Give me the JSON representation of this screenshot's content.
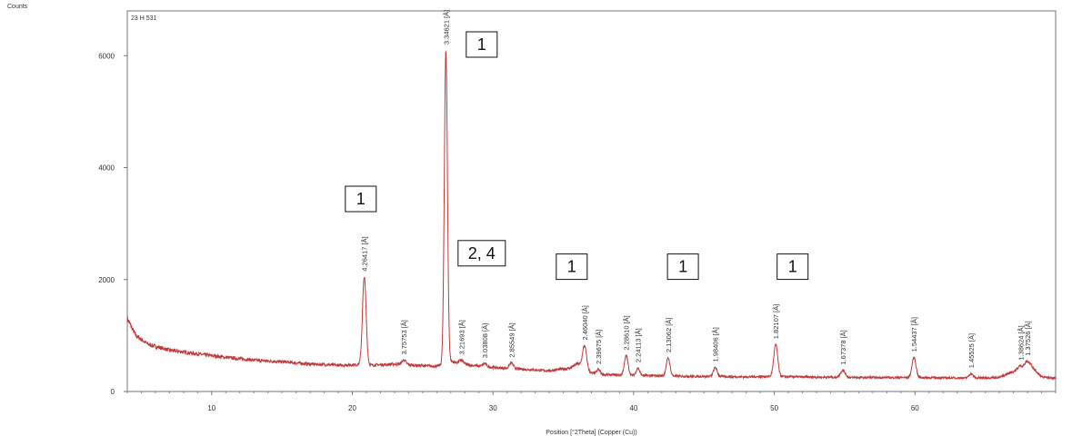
{
  "chart_data": {
    "type": "line",
    "ylabel": "Counts",
    "xlabel": "Position [°2Theta] (Copper (Cu))",
    "sample_name": "23 H 531",
    "xlim": [
      4,
      70
    ],
    "ylim": [
      0,
      6800
    ],
    "x_ticks": [
      10,
      20,
      30,
      40,
      50,
      60
    ],
    "y_ticks": [
      0,
      2000,
      4000,
      6000
    ],
    "grid": false,
    "line_color": "#c0393b",
    "baseline": [
      [
        4,
        1300
      ],
      [
        4.6,
        1000
      ],
      [
        5.5,
        840
      ],
      [
        7,
        740
      ],
      [
        9,
        670
      ],
      [
        11,
        610
      ],
      [
        13,
        560
      ],
      [
        15,
        530
      ],
      [
        17,
        490
      ],
      [
        19,
        470
      ],
      [
        20.4,
        480
      ],
      [
        21.3,
        470
      ],
      [
        23,
        490
      ],
      [
        25,
        460
      ],
      [
        26,
        450
      ],
      [
        27,
        540
      ],
      [
        28,
        480
      ],
      [
        30,
        430
      ],
      [
        32,
        400
      ],
      [
        34,
        370
      ],
      [
        35.5,
        420
      ],
      [
        36,
        500
      ],
      [
        37,
        330
      ],
      [
        38,
        300
      ],
      [
        40,
        290
      ],
      [
        42,
        280
      ],
      [
        44,
        270
      ],
      [
        46,
        270
      ],
      [
        48,
        260
      ],
      [
        50,
        270
      ],
      [
        52,
        260
      ],
      [
        54,
        255
      ],
      [
        56,
        250
      ],
      [
        58,
        250
      ],
      [
        60,
        250
      ],
      [
        62,
        245
      ],
      [
        64,
        240
      ],
      [
        66,
        250
      ],
      [
        67,
        360
      ],
      [
        68.2,
        480
      ],
      [
        69,
        260
      ],
      [
        70,
        230
      ]
    ],
    "peaks": [
      {
        "x": 20.85,
        "y": 2050,
        "w": 0.13,
        "label": "4.26417 [Å]"
      },
      {
        "x": 23.66,
        "y": 560,
        "w": 0.15,
        "label": "3.75753 [Å]"
      },
      {
        "x": 26.65,
        "y": 6100,
        "w": 0.11,
        "label": "3.34621 [Å]"
      },
      {
        "x": 27.74,
        "y": 560,
        "w": 0.15,
        "label": "3.21693 [Å]"
      },
      {
        "x": 29.4,
        "y": 500,
        "w": 0.13,
        "label": "3.03808 [Å]"
      },
      {
        "x": 31.3,
        "y": 510,
        "w": 0.14,
        "label": "2.85549 [Å]"
      },
      {
        "x": 36.5,
        "y": 820,
        "w": 0.14,
        "label": "2.46040 [Å]"
      },
      {
        "x": 37.5,
        "y": 390,
        "w": 0.12,
        "label": "2.39675 [Å]"
      },
      {
        "x": 39.47,
        "y": 640,
        "w": 0.13,
        "label": "2.28610 [Å]"
      },
      {
        "x": 40.3,
        "y": 420,
        "w": 0.12,
        "label": "2.24113 [Å]"
      },
      {
        "x": 42.45,
        "y": 600,
        "w": 0.13,
        "label": "2.13062 [Å]"
      },
      {
        "x": 45.8,
        "y": 430,
        "w": 0.13,
        "label": "1.98406 [Å]"
      },
      {
        "x": 50.1,
        "y": 840,
        "w": 0.14,
        "label": "1.82107 [Å]"
      },
      {
        "x": 54.87,
        "y": 380,
        "w": 0.16,
        "label": "1.67378 [Å]"
      },
      {
        "x": 59.93,
        "y": 610,
        "w": 0.14,
        "label": "1.54437 [Å]"
      },
      {
        "x": 63.98,
        "y": 320,
        "w": 0.14,
        "label": "1.45525 [Å]"
      },
      {
        "x": 67.5,
        "y": 460,
        "w": 0.15,
        "label": "1.38624 [Å]"
      },
      {
        "x": 67.98,
        "y": 540,
        "w": 0.15,
        "label": "1.37526 [Å]"
      }
    ],
    "annotations": [
      {
        "text": "1",
        "x": 29.2,
        "y": 6200
      },
      {
        "text": "1",
        "x": 20.6,
        "y": 3440
      },
      {
        "text": "2, 4",
        "x": 29.2,
        "y": 2470
      },
      {
        "text": "1",
        "x": 35.6,
        "y": 2230
      },
      {
        "text": "1",
        "x": 43.5,
        "y": 2230
      },
      {
        "text": "1",
        "x": 51.3,
        "y": 2230
      }
    ]
  }
}
